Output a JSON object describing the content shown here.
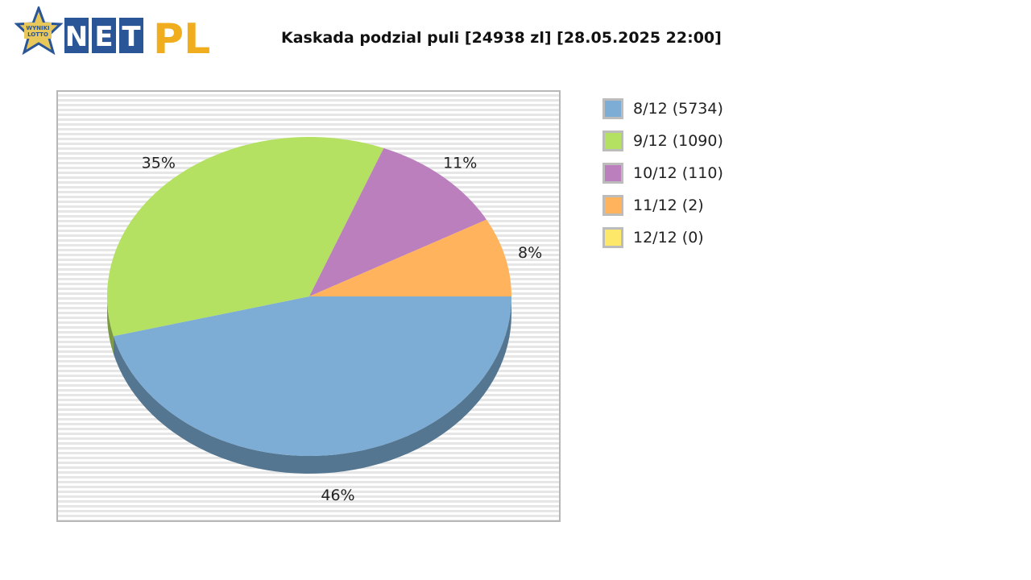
{
  "chart_data": {
    "type": "pie",
    "title": "Kaskada podzial puli [24938 zl] [28.05.2025 22:00]",
    "slices": [
      {
        "label": "8/12 (5734)",
        "percent": 46,
        "percent_label": "46%",
        "color": "#7dadd4"
      },
      {
        "label": "9/12 (1090)",
        "percent": 35,
        "percent_label": "35%",
        "color": "#b4e161"
      },
      {
        "label": "10/12 (110)",
        "percent": 11,
        "percent_label": "11%",
        "color": "#bc7fbd"
      },
      {
        "label": "11/12 (2)",
        "percent": 8,
        "percent_label": "8%",
        "color": "#ffb35c"
      },
      {
        "label": "12/12 (0)",
        "percent": 0,
        "percent_label": "",
        "color": "#fde86a"
      }
    ],
    "legend_position": "right"
  },
  "logo": {
    "net_text": "NET",
    "pl_text": "PL",
    "badge_text": [
      "WYNIKI",
      "LOTTO"
    ],
    "net_color": "#2a5698",
    "pl_color": "#f0ad1e",
    "star_color": "#e8c85a"
  }
}
